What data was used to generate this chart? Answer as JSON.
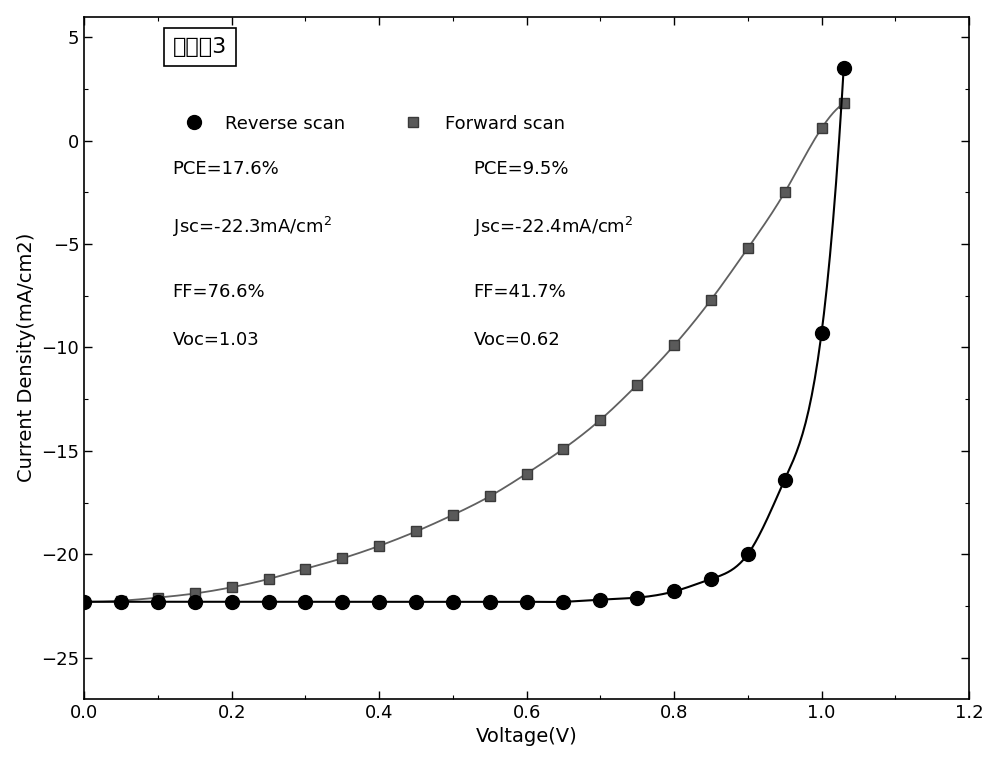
{
  "title": "实施例3",
  "xlabel": "Voltage(V)",
  "ylabel": "Current Density(mA/cm2)",
  "xlim": [
    0.0,
    1.2
  ],
  "ylim": [
    -27,
    6
  ],
  "yticks": [
    5,
    0,
    -5,
    -10,
    -15,
    -20,
    -25
  ],
  "xticks": [
    0.0,
    0.2,
    0.4,
    0.6,
    0.8,
    1.0,
    1.2
  ],
  "reverse_scan_x": [
    0.0,
    0.05,
    0.1,
    0.15,
    0.2,
    0.25,
    0.3,
    0.35,
    0.4,
    0.45,
    0.5,
    0.55,
    0.6,
    0.65,
    0.7,
    0.75,
    0.8,
    0.85,
    0.9,
    0.95,
    1.0,
    1.03
  ],
  "reverse_scan_y": [
    -22.3,
    -22.3,
    -22.3,
    -22.3,
    -22.3,
    -22.3,
    -22.3,
    -22.3,
    -22.3,
    -22.3,
    -22.3,
    -22.3,
    -22.3,
    -22.3,
    -22.2,
    -22.1,
    -21.8,
    -21.2,
    -20.0,
    -16.4,
    -9.3,
    3.5
  ],
  "forward_scan_x": [
    0.0,
    0.05,
    0.1,
    0.15,
    0.2,
    0.25,
    0.3,
    0.35,
    0.4,
    0.45,
    0.5,
    0.55,
    0.6,
    0.65,
    0.7,
    0.75,
    0.8,
    0.85,
    0.9,
    0.95,
    1.0,
    1.03
  ],
  "forward_scan_y": [
    -22.3,
    -22.25,
    -22.1,
    -21.9,
    -21.6,
    -21.2,
    -20.7,
    -20.2,
    -19.6,
    -18.9,
    -18.1,
    -17.2,
    -16.1,
    -14.9,
    -13.5,
    -11.8,
    -9.9,
    -7.7,
    -5.2,
    -2.5,
    0.6,
    1.8
  ],
  "reverse_color": "#000000",
  "forward_color": "#606060",
  "reverse_label": "Reverse scan",
  "forward_label": "Forward scan",
  "figsize": [
    10.0,
    7.63
  ],
  "dpi": 100,
  "title_fontsize": 16,
  "label_fontsize": 14,
  "tick_fontsize": 13,
  "annot_fontsize": 13
}
